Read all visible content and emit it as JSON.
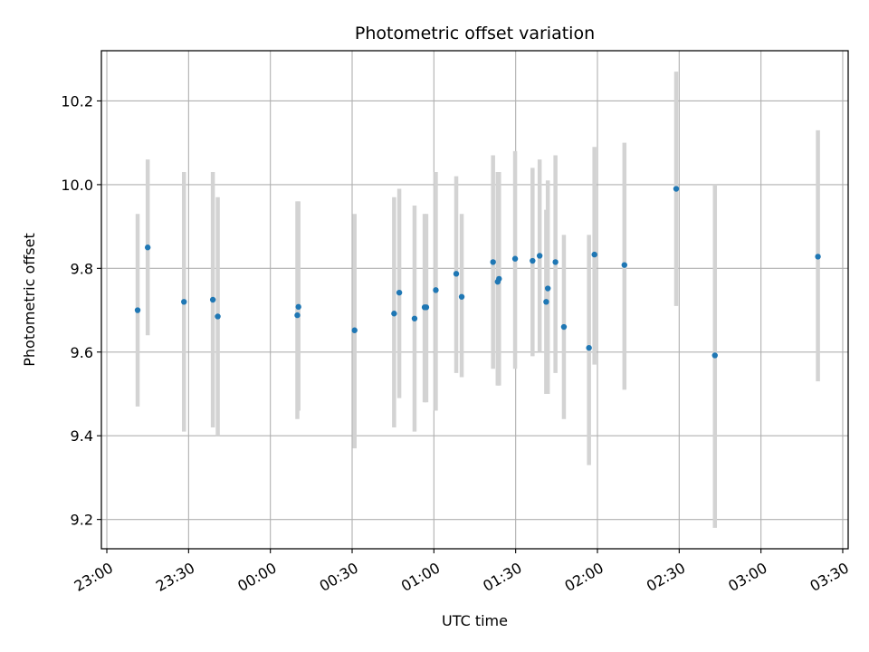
{
  "chart_data": {
    "type": "scatter",
    "title": "Photometric offset variation",
    "xlabel": "UTC time",
    "ylabel": "Photometric offset",
    "x_unit": "minutes after 23:00 UTC",
    "xlim": [
      -2,
      272
    ],
    "ylim": [
      9.13,
      10.32
    ],
    "grid": true,
    "x_ticks": [
      {
        "value": 0,
        "label": "23:00"
      },
      {
        "value": 30,
        "label": "23:30"
      },
      {
        "value": 60,
        "label": "00:00"
      },
      {
        "value": 90,
        "label": "00:30"
      },
      {
        "value": 120,
        "label": "01:00"
      },
      {
        "value": 150,
        "label": "01:30"
      },
      {
        "value": 180,
        "label": "02:00"
      },
      {
        "value": 210,
        "label": "02:30"
      },
      {
        "value": 240,
        "label": "03:00"
      },
      {
        "value": 270,
        "label": "03:30"
      }
    ],
    "y_ticks": [
      {
        "value": 9.2,
        "label": "9.2"
      },
      {
        "value": 9.4,
        "label": "9.4"
      },
      {
        "value": 9.6,
        "label": "9.6"
      },
      {
        "value": 9.8,
        "label": "9.8"
      },
      {
        "value": 10.0,
        "label": "10.0"
      },
      {
        "value": 10.2,
        "label": "10.2"
      }
    ],
    "colors": {
      "point": "#1f77b4",
      "errorbar": "#d3d3d3",
      "grid": "#b0b0b0"
    },
    "points": [
      {
        "x": 11.3,
        "y": 9.7,
        "lo": 9.47,
        "hi": 9.93
      },
      {
        "x": 15.0,
        "y": 9.85,
        "lo": 9.64,
        "hi": 10.06
      },
      {
        "x": 28.3,
        "y": 9.72,
        "lo": 9.41,
        "hi": 10.03
      },
      {
        "x": 38.9,
        "y": 9.725,
        "lo": 9.42,
        "hi": 10.03
      },
      {
        "x": 40.7,
        "y": 9.685,
        "lo": 9.4,
        "hi": 9.97
      },
      {
        "x": 69.9,
        "y": 9.688,
        "lo": 9.44,
        "hi": 9.96
      },
      {
        "x": 70.3,
        "y": 9.708,
        "lo": 9.46,
        "hi": 9.96
      },
      {
        "x": 90.9,
        "y": 9.652,
        "lo": 9.37,
        "hi": 9.93
      },
      {
        "x": 105.4,
        "y": 9.692,
        "lo": 9.42,
        "hi": 9.97
      },
      {
        "x": 107.3,
        "y": 9.742,
        "lo": 9.49,
        "hi": 9.99
      },
      {
        "x": 112.9,
        "y": 9.68,
        "lo": 9.41,
        "hi": 9.95
      },
      {
        "x": 116.6,
        "y": 9.707,
        "lo": 9.48,
        "hi": 9.93
      },
      {
        "x": 117.2,
        "y": 9.707,
        "lo": 9.48,
        "hi": 9.93
      },
      {
        "x": 120.7,
        "y": 9.748,
        "lo": 9.46,
        "hi": 10.03
      },
      {
        "x": 128.2,
        "y": 9.787,
        "lo": 9.55,
        "hi": 10.02
      },
      {
        "x": 130.2,
        "y": 9.732,
        "lo": 9.54,
        "hi": 9.93
      },
      {
        "x": 141.7,
        "y": 9.815,
        "lo": 9.56,
        "hi": 10.07
      },
      {
        "x": 143.4,
        "y": 9.768,
        "lo": 9.52,
        "hi": 10.03
      },
      {
        "x": 143.9,
        "y": 9.775,
        "lo": 9.52,
        "hi": 10.03
      },
      {
        "x": 149.8,
        "y": 9.823,
        "lo": 9.56,
        "hi": 10.08
      },
      {
        "x": 156.2,
        "y": 9.818,
        "lo": 9.59,
        "hi": 10.04
      },
      {
        "x": 158.8,
        "y": 9.83,
        "lo": 9.6,
        "hi": 10.06
      },
      {
        "x": 161.2,
        "y": 9.72,
        "lo": 9.5,
        "hi": 9.94
      },
      {
        "x": 161.8,
        "y": 9.752,
        "lo": 9.5,
        "hi": 10.01
      },
      {
        "x": 164.6,
        "y": 9.815,
        "lo": 9.55,
        "hi": 10.07
      },
      {
        "x": 167.7,
        "y": 9.66,
        "lo": 9.44,
        "hi": 9.88
      },
      {
        "x": 176.9,
        "y": 9.61,
        "lo": 9.33,
        "hi": 9.88
      },
      {
        "x": 178.9,
        "y": 9.833,
        "lo": 9.57,
        "hi": 10.09
      },
      {
        "x": 189.9,
        "y": 9.808,
        "lo": 9.51,
        "hi": 10.1
      },
      {
        "x": 208.9,
        "y": 9.99,
        "lo": 9.71,
        "hi": 10.27
      },
      {
        "x": 223.1,
        "y": 9.592,
        "lo": 9.18,
        "hi": 10.0
      },
      {
        "x": 260.9,
        "y": 9.828,
        "lo": 9.53,
        "hi": 10.13
      }
    ]
  }
}
